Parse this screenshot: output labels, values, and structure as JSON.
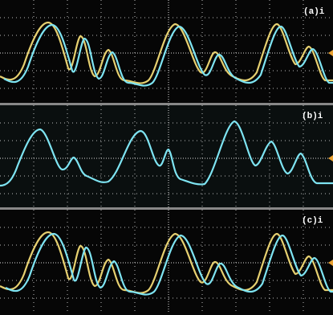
{
  "panels": [
    {
      "label": "(a)i"
    },
    {
      "label": "(b)i"
    },
    {
      "label": "(c)i"
    }
  ]
}
